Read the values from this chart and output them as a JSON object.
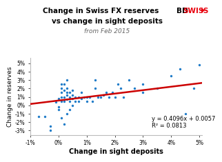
{
  "title1": "Change in Swiss FX reserves",
  "title2": "vs change in sight deposits",
  "subtitle": "from Feb 2015",
  "xlabel": "Change in sight deposits",
  "ylabel": "Change in reserves",
  "brand_bd": "BD",
  "brand_swiss": "SWISS",
  "brand_color": "#e8000d",
  "equation": "y = 0.4096x + 0.0057",
  "r_squared": "R² = 0.0813",
  "slope": 0.4096,
  "intercept": 0.0057,
  "dot_color": "#1f7bc8",
  "line_color": "#cc0000",
  "xlim": [
    -0.01,
    0.051
  ],
  "ylim": [
    -0.035,
    0.056
  ],
  "xticks": [
    -0.01,
    0.0,
    0.01,
    0.02,
    0.03,
    0.04,
    0.05
  ],
  "yticks": [
    -0.03,
    -0.02,
    -0.01,
    0.0,
    0.01,
    0.02,
    0.03,
    0.04,
    0.05
  ],
  "scatter_x": [
    -0.007,
    -0.005,
    -0.003,
    -0.003,
    -0.001,
    0.0,
    0.0,
    0.0,
    0.0,
    0.001,
    0.001,
    0.001,
    0.001,
    0.001,
    0.001,
    0.002,
    0.002,
    0.002,
    0.002,
    0.002,
    0.003,
    0.003,
    0.003,
    0.003,
    0.003,
    0.003,
    0.004,
    0.004,
    0.004,
    0.004,
    0.005,
    0.005,
    0.005,
    0.005,
    0.006,
    0.006,
    0.007,
    0.007,
    0.008,
    0.008,
    0.009,
    0.01,
    0.01,
    0.011,
    0.012,
    0.013,
    0.013,
    0.014,
    0.015,
    0.016,
    0.017,
    0.018,
    0.019,
    0.02,
    0.021,
    0.022,
    0.023,
    0.025,
    0.027,
    0.03,
    0.03,
    0.035,
    0.04,
    0.043,
    0.045,
    0.048,
    0.05
  ],
  "scatter_y": [
    -0.013,
    -0.013,
    -0.03,
    -0.025,
    0.004,
    0.006,
    0.008,
    -0.002,
    -0.005,
    0.005,
    0.01,
    0.015,
    0.02,
    0.025,
    -0.015,
    0.005,
    0.01,
    0.018,
    0.025,
    -0.022,
    0.007,
    0.012,
    0.015,
    0.02,
    0.03,
    -0.01,
    0.005,
    0.01,
    0.015,
    -0.005,
    0.008,
    0.012,
    0.018,
    0.0,
    0.005,
    0.01,
    0.005,
    0.01,
    0.008,
    0.015,
    0.01,
    0.005,
    0.01,
    0.01,
    0.005,
    0.02,
    0.03,
    0.01,
    0.01,
    0.012,
    0.015,
    0.01,
    0.015,
    0.01,
    0.025,
    0.02,
    0.01,
    0.03,
    0.02,
    0.025,
    0.015,
    0.02,
    0.035,
    0.043,
    -0.01,
    0.02,
    0.048
  ]
}
